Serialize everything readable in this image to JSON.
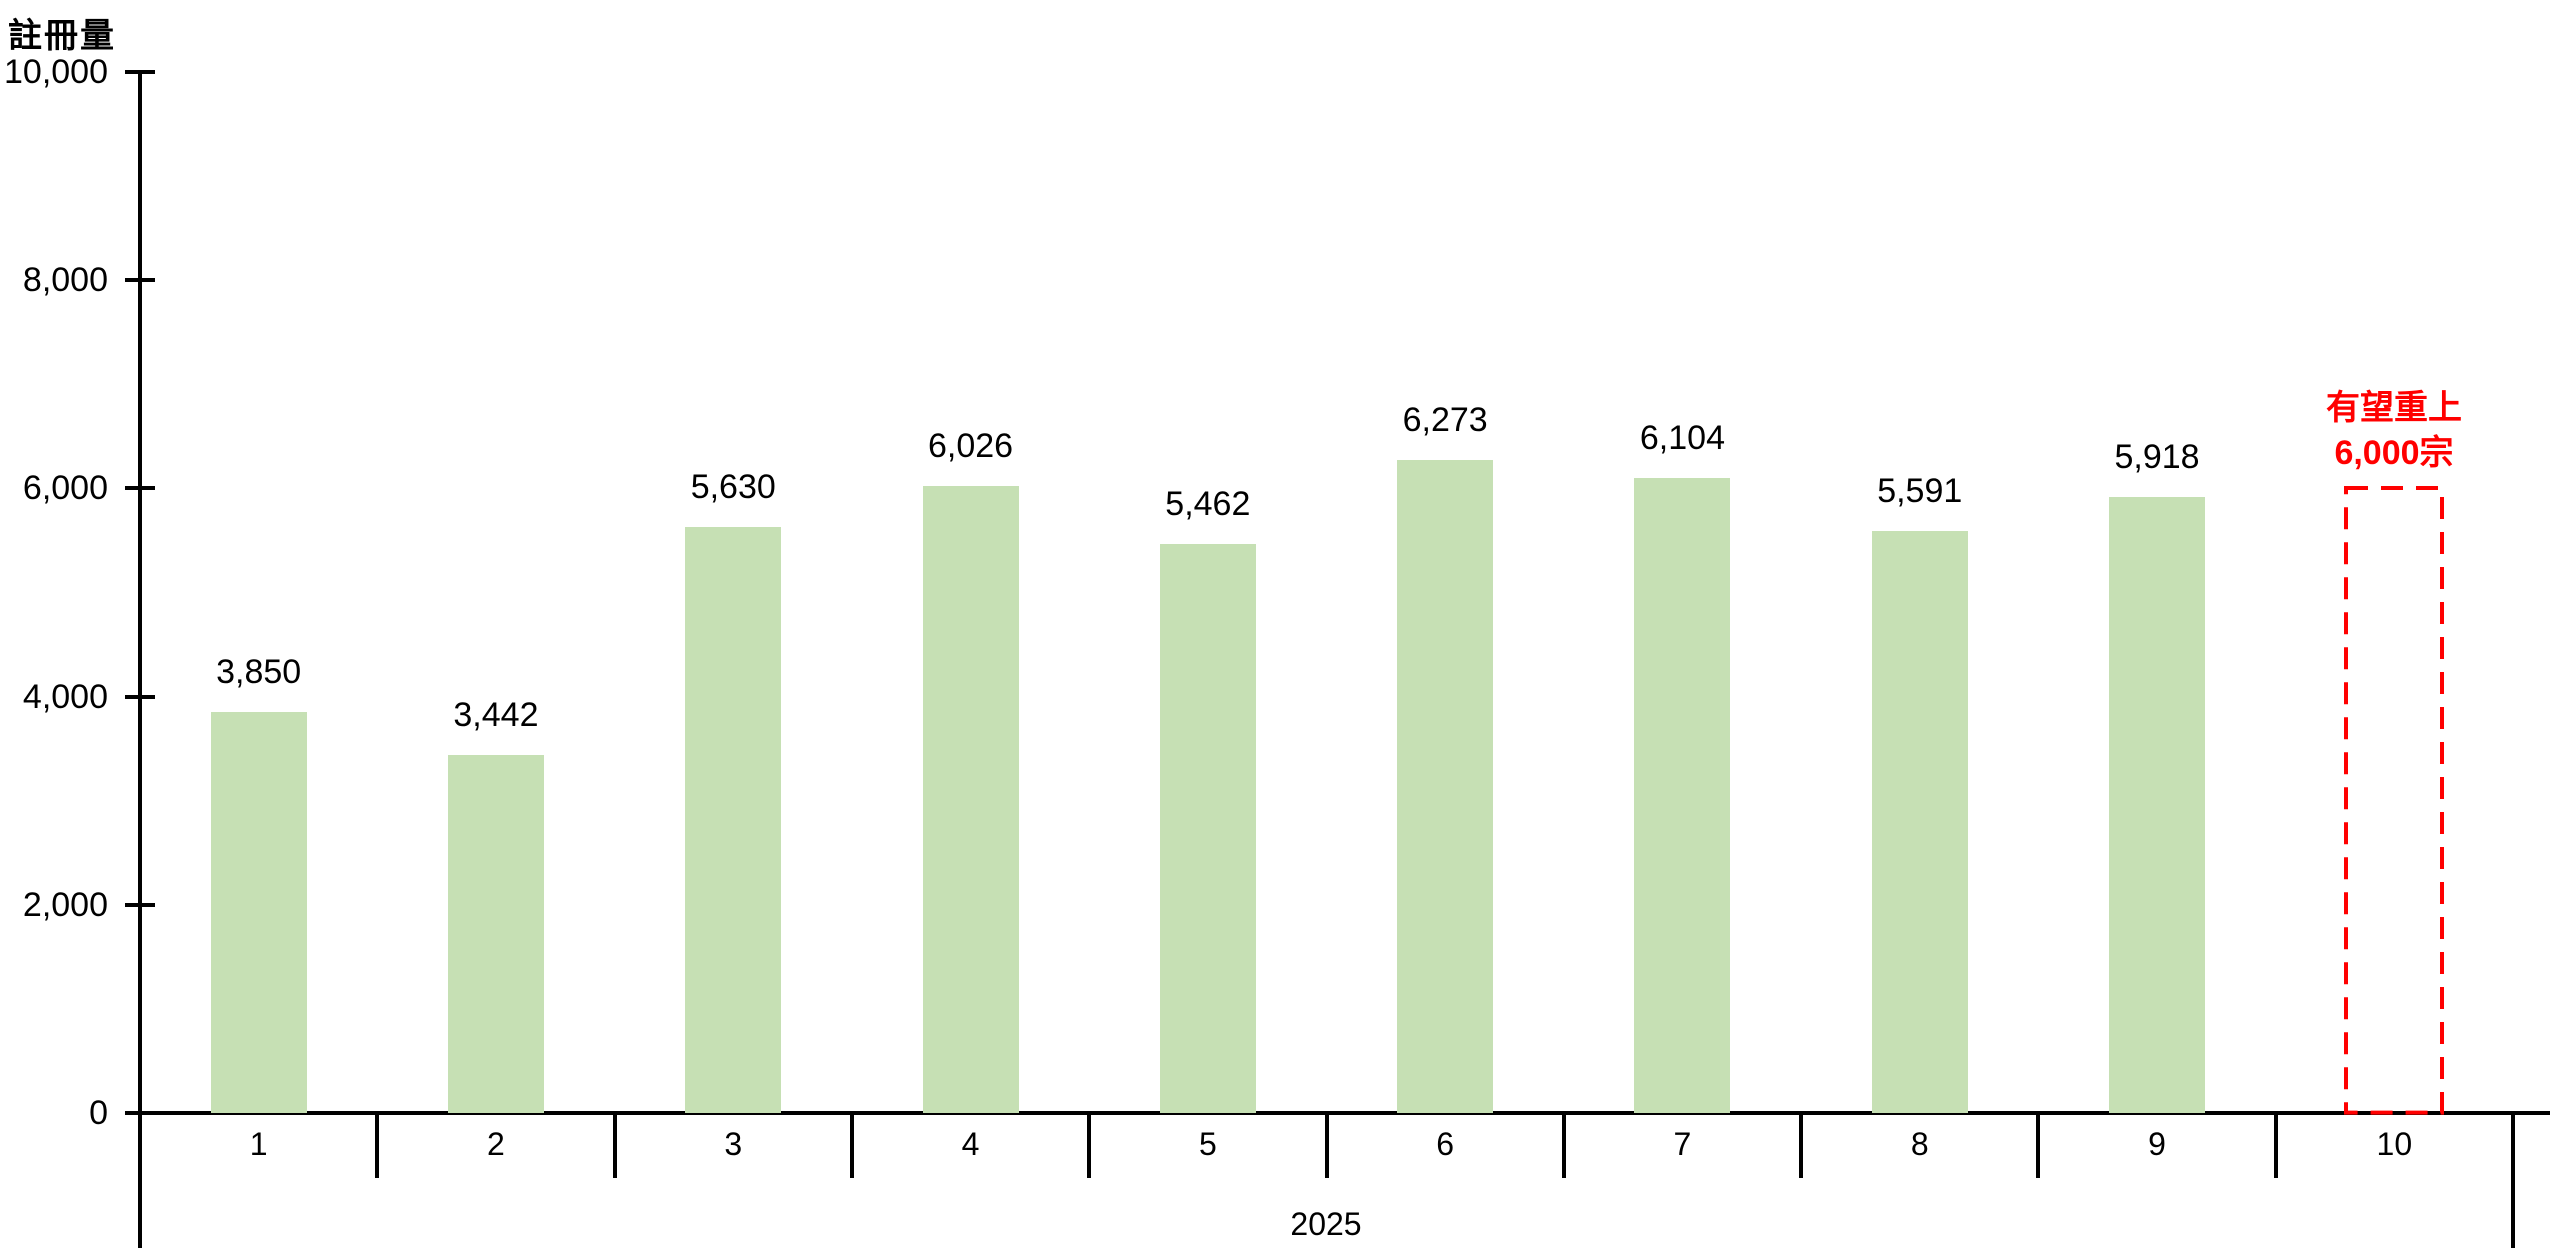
{
  "chart_data": {
    "type": "bar",
    "title": "",
    "ylabel": "註冊量",
    "year": "2025",
    "categories": [
      "1",
      "2",
      "3",
      "4",
      "5",
      "6",
      "7",
      "8",
      "9",
      "10"
    ],
    "series": [
      {
        "name": "註冊量",
        "values": [
          3850,
          3442,
          5630,
          6026,
          5462,
          6273,
          6104,
          5591,
          5918
        ]
      }
    ],
    "value_labels": [
      "3,850",
      "3,442",
      "5,630",
      "6,026",
      "5,462",
      "6,273",
      "6,104",
      "5,591",
      "5,918"
    ],
    "forecast": {
      "category": "10",
      "value": 6000,
      "style": "dashed-outline",
      "annotation_line1": "有望重上",
      "annotation_line2": "6,000宗"
    },
    "ylim": [
      0,
      10000
    ],
    "yticks": [
      0,
      2000,
      4000,
      6000,
      8000,
      10000
    ],
    "ytick_labels": [
      "0",
      "2,000",
      "4,000",
      "6,000",
      "8,000",
      "10,000"
    ],
    "grid": false,
    "legend": false,
    "colors": {
      "bar": "#c6e0b4",
      "forecast": "#ff0000",
      "axis": "#000000",
      "text": "#000000",
      "background": "#ffffff"
    }
  }
}
